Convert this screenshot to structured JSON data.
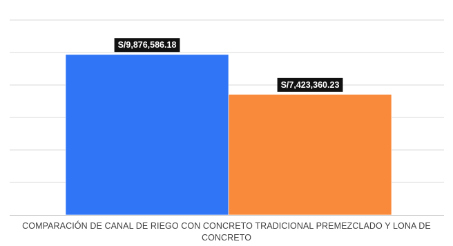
{
  "chart_data": {
    "type": "bar",
    "categories": [
      "COMPARACIÓN DE CANAL DE RIEGO CON CONCRETO TRADICIONAL PREMEZCLADO Y LONA DE CONCRETO"
    ],
    "series": [
      {
        "values": [
          9876586.18
        ],
        "color": "#2f75f5",
        "data_label": "S/9,876,586.18"
      },
      {
        "values": [
          7423360.23
        ],
        "color": "#f98a3c",
        "data_label": "S/7,423,360.23"
      }
    ],
    "ylim": [
      0,
      12000000
    ],
    "grid": true,
    "legend": "none",
    "data_label_style": {
      "background": "#111111",
      "color": "#ffffff"
    },
    "gridline_color": "#d9d9d9",
    "axis_line_color": "#bfbfbf"
  }
}
